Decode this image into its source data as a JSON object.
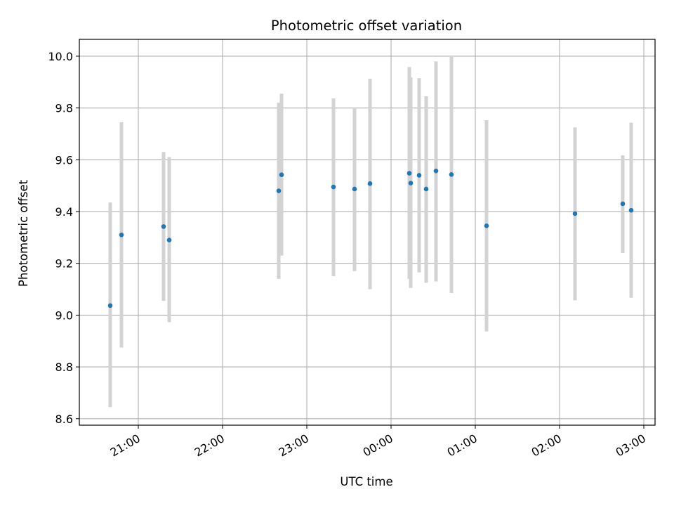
{
  "chart_data": {
    "type": "scatter",
    "title": "Photometric offset variation",
    "xlabel": "UTC time",
    "ylabel": "Photometric offset",
    "grid": true,
    "xlim": [
      "20:18",
      "03:08"
    ],
    "ylim": [
      8.575,
      10.065
    ],
    "x_ticks": [
      "21:00",
      "22:00",
      "23:00",
      "00:00",
      "01:00",
      "02:00",
      "03:00"
    ],
    "y_ticks": [
      "8.6",
      "8.8",
      "9.0",
      "9.2",
      "9.4",
      "9.6",
      "9.8",
      "10.0"
    ],
    "marker_color": "#1f77b4",
    "errorbar_color": "#d3d3d3",
    "points": [
      {
        "x": "20:40",
        "y": 9.037,
        "err_low": 8.645,
        "err_high": 9.435
      },
      {
        "x": "20:48",
        "y": 9.31,
        "err_low": 8.875,
        "err_high": 9.745
      },
      {
        "x": "21:18",
        "y": 9.342,
        "err_low": 9.055,
        "err_high": 9.63
      },
      {
        "x": "21:22",
        "y": 9.29,
        "err_low": 8.973,
        "err_high": 9.61
      },
      {
        "x": "22:40",
        "y": 9.48,
        "err_low": 9.14,
        "err_high": 9.82
      },
      {
        "x": "22:42",
        "y": 9.542,
        "err_low": 9.23,
        "err_high": 9.855
      },
      {
        "x": "23:19",
        "y": 9.495,
        "err_low": 9.15,
        "err_high": 9.837
      },
      {
        "x": "23:34",
        "y": 9.487,
        "err_low": 9.17,
        "err_high": 9.8
      },
      {
        "x": "23:45",
        "y": 9.508,
        "err_low": 9.1,
        "err_high": 9.913
      },
      {
        "x": "00:13",
        "y": 9.548,
        "err_low": 9.14,
        "err_high": 9.958
      },
      {
        "x": "00:14",
        "y": 9.51,
        "err_low": 9.105,
        "err_high": 9.918
      },
      {
        "x": "00:20",
        "y": 9.54,
        "err_low": 9.165,
        "err_high": 9.915
      },
      {
        "x": "00:25",
        "y": 9.487,
        "err_low": 9.125,
        "err_high": 9.845
      },
      {
        "x": "00:32",
        "y": 9.557,
        "err_low": 9.13,
        "err_high": 9.98
      },
      {
        "x": "00:43",
        "y": 9.543,
        "err_low": 9.085,
        "err_high": 9.997
      },
      {
        "x": "01:08",
        "y": 9.345,
        "err_low": 8.937,
        "err_high": 9.753
      },
      {
        "x": "02:11",
        "y": 9.392,
        "err_low": 9.057,
        "err_high": 9.725
      },
      {
        "x": "02:45",
        "y": 9.43,
        "err_low": 9.24,
        "err_high": 9.617
      },
      {
        "x": "02:51",
        "y": 9.405,
        "err_low": 9.067,
        "err_high": 9.743
      }
    ]
  }
}
